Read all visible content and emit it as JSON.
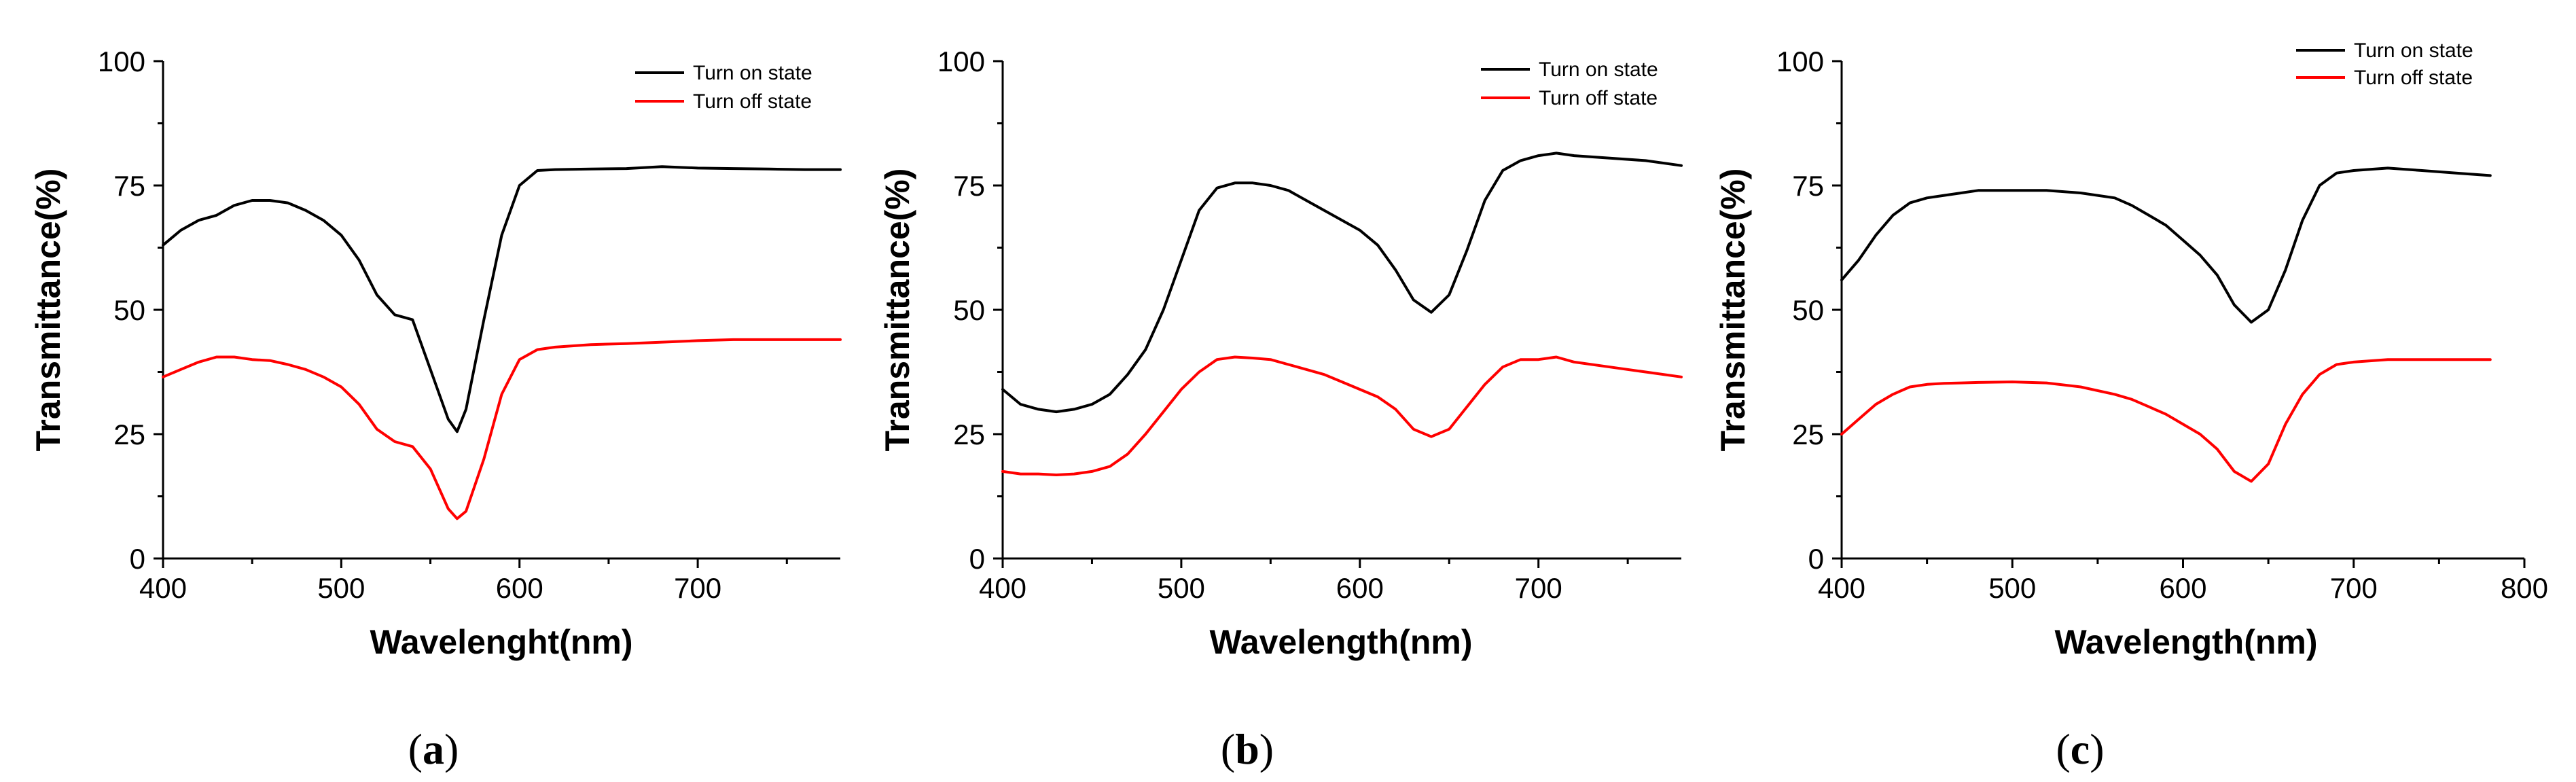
{
  "figure": {
    "panel_labels": [
      "(a)",
      "(b)",
      "(c)"
    ]
  },
  "chart_data": [
    {
      "type": "line",
      "title": "",
      "xlabel": "Wavelenght(nm)",
      "ylabel": "Transmittance(%)",
      "xlim": [
        400,
        780
      ],
      "ylim": [
        0,
        100
      ],
      "xticks": [
        400,
        500,
        600,
        700
      ],
      "yticks": [
        0,
        25,
        50,
        75,
        100
      ],
      "legend_position": "top-right",
      "series": [
        {
          "name": "Turn on state",
          "color": "#000000",
          "x": [
            400,
            410,
            420,
            430,
            440,
            450,
            460,
            470,
            480,
            490,
            500,
            510,
            520,
            530,
            540,
            550,
            560,
            565,
            570,
            580,
            590,
            600,
            610,
            620,
            640,
            660,
            680,
            700,
            720,
            740,
            760,
            780
          ],
          "y": [
            63,
            66,
            68,
            69,
            71,
            72,
            72,
            71.5,
            70,
            68,
            65,
            60,
            53,
            49,
            48,
            38,
            28,
            25.5,
            30,
            48,
            65,
            75,
            78,
            78.2,
            78.3,
            78.4,
            78.8,
            78.5,
            78.4,
            78.3,
            78.2,
            78.2
          ]
        },
        {
          "name": "Turn off state",
          "color": "#ff0000",
          "x": [
            400,
            410,
            420,
            430,
            440,
            450,
            460,
            470,
            480,
            490,
            500,
            510,
            520,
            530,
            540,
            550,
            560,
            565,
            570,
            580,
            590,
            600,
            610,
            620,
            640,
            660,
            680,
            700,
            720,
            740,
            760,
            780
          ],
          "y": [
            36.5,
            38,
            39.5,
            40.5,
            40.5,
            40,
            39.8,
            39,
            38,
            36.5,
            34.5,
            31,
            26,
            23.5,
            22.5,
            18,
            10,
            8,
            9.5,
            20,
            33,
            40,
            42,
            42.5,
            43,
            43.2,
            43.5,
            43.8,
            44,
            44,
            44,
            44
          ]
        }
      ]
    },
    {
      "type": "line",
      "title": "",
      "xlabel": "Wavelength(nm)",
      "ylabel": "Transmittance(%)",
      "xlim": [
        400,
        780
      ],
      "ylim": [
        0,
        100
      ],
      "xticks": [
        400,
        500,
        600,
        700
      ],
      "yticks": [
        0,
        25,
        50,
        75,
        100
      ],
      "legend_position": "top-right",
      "series": [
        {
          "name": "Turn on state",
          "color": "#000000",
          "x": [
            400,
            410,
            420,
            430,
            440,
            450,
            460,
            470,
            480,
            490,
            500,
            510,
            520,
            530,
            540,
            550,
            560,
            570,
            580,
            590,
            600,
            610,
            620,
            630,
            640,
            650,
            660,
            670,
            680,
            690,
            700,
            710,
            720,
            740,
            760,
            780
          ],
          "y": [
            34,
            31,
            30,
            29.5,
            30,
            31,
            33,
            37,
            42,
            50,
            60,
            70,
            74.5,
            75.5,
            75.5,
            75,
            74,
            72,
            70,
            68,
            66,
            63,
            58,
            52,
            49.5,
            53,
            62,
            72,
            78,
            80,
            81,
            81.5,
            81,
            80.5,
            80,
            79
          ]
        },
        {
          "name": "Turn off state",
          "color": "#ff0000",
          "x": [
            400,
            410,
            420,
            430,
            440,
            450,
            460,
            470,
            480,
            490,
            500,
            510,
            520,
            530,
            540,
            550,
            560,
            570,
            580,
            590,
            600,
            610,
            620,
            630,
            640,
            650,
            660,
            670,
            680,
            690,
            700,
            710,
            720,
            740,
            760,
            780
          ],
          "y": [
            17.5,
            17,
            17,
            16.8,
            17,
            17.5,
            18.5,
            21,
            25,
            29.5,
            34,
            37.5,
            40,
            40.5,
            40.3,
            40,
            39,
            38,
            37,
            35.5,
            34,
            32.5,
            30,
            26,
            24.5,
            26,
            30.5,
            35,
            38.5,
            40,
            40,
            40.5,
            39.5,
            38.5,
            37.5,
            36.5
          ]
        }
      ]
    },
    {
      "type": "line",
      "title": "",
      "xlabel": "Wavelength(nm)",
      "ylabel": "Transmittance(%)",
      "xlim": [
        400,
        800
      ],
      "ylim": [
        0,
        100
      ],
      "xticks": [
        400,
        500,
        600,
        700,
        800
      ],
      "yticks": [
        0,
        25,
        50,
        75,
        100
      ],
      "legend_position": "top-right",
      "series": [
        {
          "name": "Turn on state",
          "color": "#000000",
          "x": [
            400,
            410,
            420,
            430,
            440,
            450,
            460,
            470,
            480,
            500,
            520,
            540,
            560,
            570,
            580,
            590,
            600,
            610,
            620,
            630,
            640,
            650,
            660,
            670,
            680,
            690,
            700,
            720,
            740,
            760,
            780
          ],
          "y": [
            56,
            60,
            65,
            69,
            71.5,
            72.5,
            73,
            73.5,
            74,
            74,
            74,
            73.5,
            72.5,
            71,
            69,
            67,
            64,
            61,
            57,
            51,
            47.5,
            50,
            58,
            68,
            75,
            77.5,
            78,
            78.5,
            78,
            77.5,
            77
          ]
        },
        {
          "name": "Turn off state",
          "color": "#ff0000",
          "x": [
            400,
            410,
            420,
            430,
            440,
            450,
            460,
            470,
            480,
            500,
            520,
            540,
            560,
            570,
            580,
            590,
            600,
            610,
            620,
            630,
            640,
            650,
            660,
            670,
            680,
            690,
            700,
            720,
            740,
            760,
            780
          ],
          "y": [
            25,
            28,
            31,
            33,
            34.5,
            35,
            35.2,
            35.3,
            35.4,
            35.5,
            35.3,
            34.5,
            33,
            32,
            30.5,
            29,
            27,
            25,
            22,
            17.5,
            15.5,
            19,
            27,
            33,
            37,
            39,
            39.5,
            40,
            40,
            40,
            40
          ]
        }
      ]
    }
  ]
}
